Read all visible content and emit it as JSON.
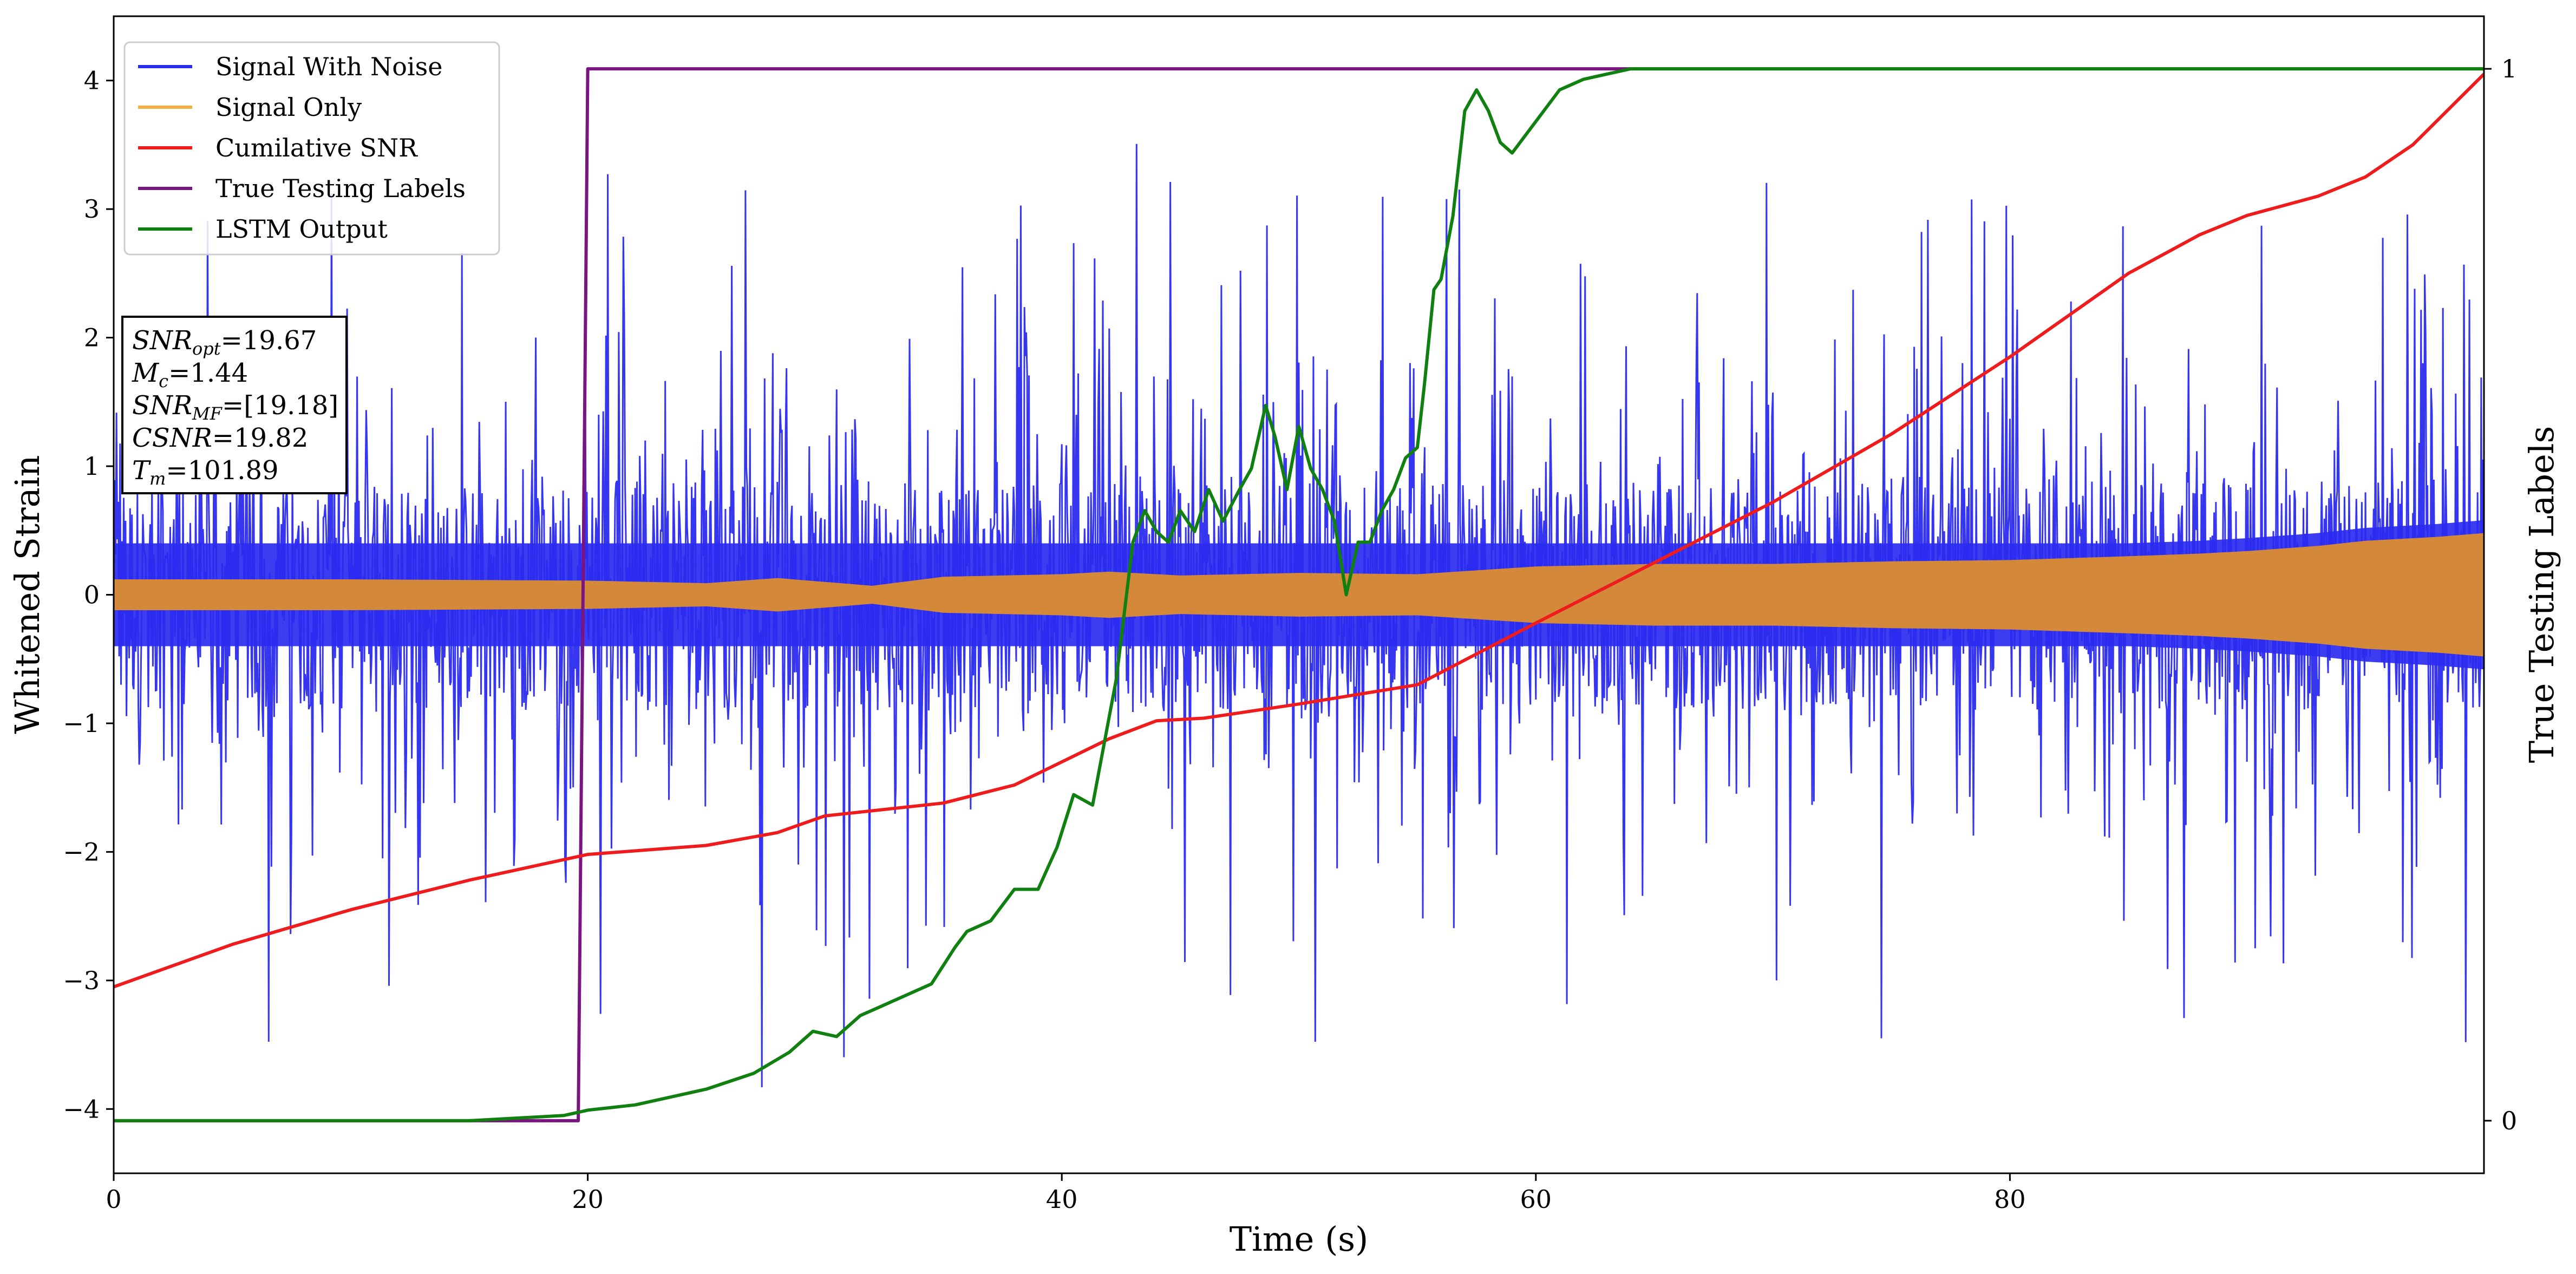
{
  "chart_data": {
    "type": "line",
    "xlabel": "Time (s)",
    "ylabel": "Whitened Strain",
    "y2label": "True Testing Labels",
    "xlim": [
      0,
      100
    ],
    "ylim": [
      -4.5,
      4.5
    ],
    "y2lim": [
      -0.05,
      1.05
    ],
    "x_ticks": [
      "0",
      "20",
      "40",
      "60",
      "80"
    ],
    "y_ticks": [
      "4",
      "3",
      "2",
      "1",
      "0",
      "−1",
      "−2",
      "−3",
      "−4"
    ],
    "y2_ticks": [
      "1",
      "0"
    ],
    "legend_position": "top-left",
    "annotation": [
      {
        "base": "SNR",
        "sub": "opt",
        "value": "=19.67"
      },
      {
        "base": "M",
        "sub": "c",
        "value": "=1.44"
      },
      {
        "base": "SNR",
        "sub": "MF",
        "value": "=[19.18]"
      },
      {
        "base": "CSNR",
        "sub": "",
        "value": "=19.82"
      },
      {
        "base": "T",
        "sub": "m",
        "value": "=101.89"
      }
    ],
    "series": [
      {
        "name": "Signal With Noise",
        "color": "#2b2bf0",
        "axis": "left",
        "description_values": {
          "center_band": [
            -0.45,
            0.45
          ],
          "spike_range": [
            -3.6,
            4.1
          ]
        }
      },
      {
        "name": "Signal Only",
        "color": "#d4893a",
        "axis": "left",
        "envelope": {
          "x": [
            0,
            10,
            20,
            25,
            28,
            32,
            35,
            40,
            42,
            45,
            50,
            55,
            60,
            65,
            70,
            75,
            80,
            85,
            88,
            90,
            93,
            95,
            98,
            100
          ],
          "amp": [
            0.12,
            0.12,
            0.11,
            0.09,
            0.13,
            0.07,
            0.14,
            0.16,
            0.18,
            0.15,
            0.17,
            0.16,
            0.22,
            0.24,
            0.24,
            0.26,
            0.27,
            0.3,
            0.32,
            0.34,
            0.38,
            0.42,
            0.45,
            0.48
          ]
        }
      },
      {
        "name": "Cumilative SNR",
        "color": "#ee1c1c",
        "axis": "left",
        "x": [
          0,
          5,
          10,
          15,
          20,
          25,
          28,
          30,
          35,
          38,
          40,
          42,
          44,
          46,
          50,
          55,
          60,
          65,
          70,
          75,
          80,
          85,
          88,
          90,
          93,
          95,
          97,
          100
        ],
        "y": [
          -3.05,
          -2.72,
          -2.45,
          -2.22,
          -2.02,
          -1.95,
          -1.85,
          -1.72,
          -1.62,
          -1.48,
          -1.3,
          -1.12,
          -0.98,
          -0.96,
          -0.85,
          -0.7,
          -0.22,
          0.25,
          0.72,
          1.25,
          1.85,
          2.5,
          2.8,
          2.95,
          3.1,
          3.25,
          3.5,
          4.05
        ]
      },
      {
        "name": "True Testing Labels",
        "color": "#7a1480",
        "axis": "right",
        "x": [
          0,
          19.6,
          20.0,
          100
        ],
        "y": [
          0,
          0,
          1,
          1
        ]
      },
      {
        "name": "LSTM Output",
        "color": "#108010",
        "axis": "right",
        "x": [
          0,
          15,
          19,
          20,
          22,
          24,
          25,
          27,
          28.5,
          29.5,
          30.5,
          31.5,
          32.5,
          33,
          34.5,
          35.5,
          36,
          37,
          38,
          39,
          39.8,
          40.5,
          41.3,
          41.8,
          42.3,
          43,
          43.5,
          44,
          44.5,
          45,
          45.6,
          46.2,
          46.8,
          47.5,
          48,
          48.6,
          49,
          49.5,
          50,
          50.5,
          51,
          51.5,
          52,
          52.5,
          53,
          53.5,
          54,
          54.5,
          55,
          55.3,
          55.7,
          56,
          56.5,
          57,
          57.5,
          58,
          58.5,
          59,
          60,
          61,
          62,
          64,
          66,
          70,
          80,
          100
        ],
        "y": [
          0,
          0,
          0.005,
          0.01,
          0.015,
          0.025,
          0.03,
          0.045,
          0.065,
          0.085,
          0.08,
          0.1,
          0.11,
          0.115,
          0.13,
          0.165,
          0.18,
          0.19,
          0.22,
          0.22,
          0.26,
          0.31,
          0.3,
          0.36,
          0.42,
          0.55,
          0.58,
          0.56,
          0.55,
          0.58,
          0.56,
          0.6,
          0.57,
          0.6,
          0.62,
          0.68,
          0.65,
          0.6,
          0.66,
          0.62,
          0.6,
          0.57,
          0.5,
          0.55,
          0.55,
          0.58,
          0.6,
          0.63,
          0.64,
          0.7,
          0.79,
          0.8,
          0.86,
          0.96,
          0.98,
          0.96,
          0.93,
          0.92,
          0.95,
          0.98,
          0.99,
          1,
          1,
          1,
          1,
          1
        ]
      }
    ]
  }
}
